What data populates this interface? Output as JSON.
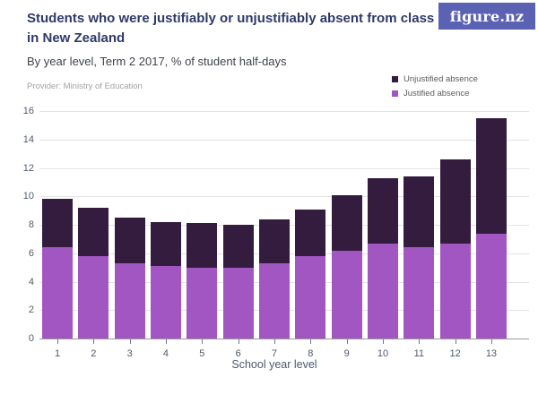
{
  "header": {
    "title_lines": [
      "Students who were justifiably or unjustifiably absent from class",
      "in New Zealand"
    ],
    "subtitle": "By year level, Term 2 2017, % of student half-days",
    "provider": "Provider: Ministry of Education",
    "logo_text": "figure.nz"
  },
  "legend": {
    "items": [
      {
        "label": "Unjustified absence",
        "color": "#331c3e"
      },
      {
        "label": "Justified absence",
        "color": "#a256c2"
      }
    ]
  },
  "chart_data": {
    "type": "bar",
    "stacked": true,
    "title": "Students who were justifiably or unjustifiably absent from class in New Zealand",
    "subtitle": "By year level, Term 2 2017, % of student half-days",
    "xlabel": "School year level",
    "ylabel": "",
    "categories": [
      "1",
      "2",
      "3",
      "4",
      "5",
      "6",
      "7",
      "8",
      "9",
      "10",
      "11",
      "12",
      "13"
    ],
    "series": [
      {
        "name": "Justified absence",
        "color": "#a256c2",
        "values": [
          6.4,
          5.8,
          5.3,
          5.1,
          5.0,
          5.0,
          5.3,
          5.8,
          6.2,
          6.7,
          6.4,
          6.7,
          7.4
        ]
      },
      {
        "name": "Unjustified absence",
        "color": "#331c3e",
        "values": [
          3.4,
          3.4,
          3.2,
          3.1,
          3.1,
          3.0,
          3.1,
          3.3,
          3.9,
          4.6,
          5.0,
          5.9,
          8.1
        ]
      }
    ],
    "totals": [
      9.8,
      9.2,
      8.5,
      8.2,
      8.1,
      8.0,
      8.4,
      9.1,
      10.1,
      11.3,
      11.4,
      12.6,
      15.5
    ],
    "ylim": [
      0,
      16
    ],
    "yticks": [
      0,
      2,
      4,
      6,
      8,
      10,
      12,
      14,
      16
    ],
    "grid": true,
    "legend_position": "top-right"
  },
  "colors": {
    "title": "#2e3a66",
    "subtitle": "#3d434b",
    "provider": "#a3a3a3",
    "logo_background": "#5b62b4",
    "logo_text": "#ffffff",
    "axis_labels": "#4d586c",
    "gridline": "#e3e3e6",
    "axis_line": "#9b9b9b",
    "justified_bar": "#a256c2",
    "unjustified_bar": "#331c3e"
  }
}
